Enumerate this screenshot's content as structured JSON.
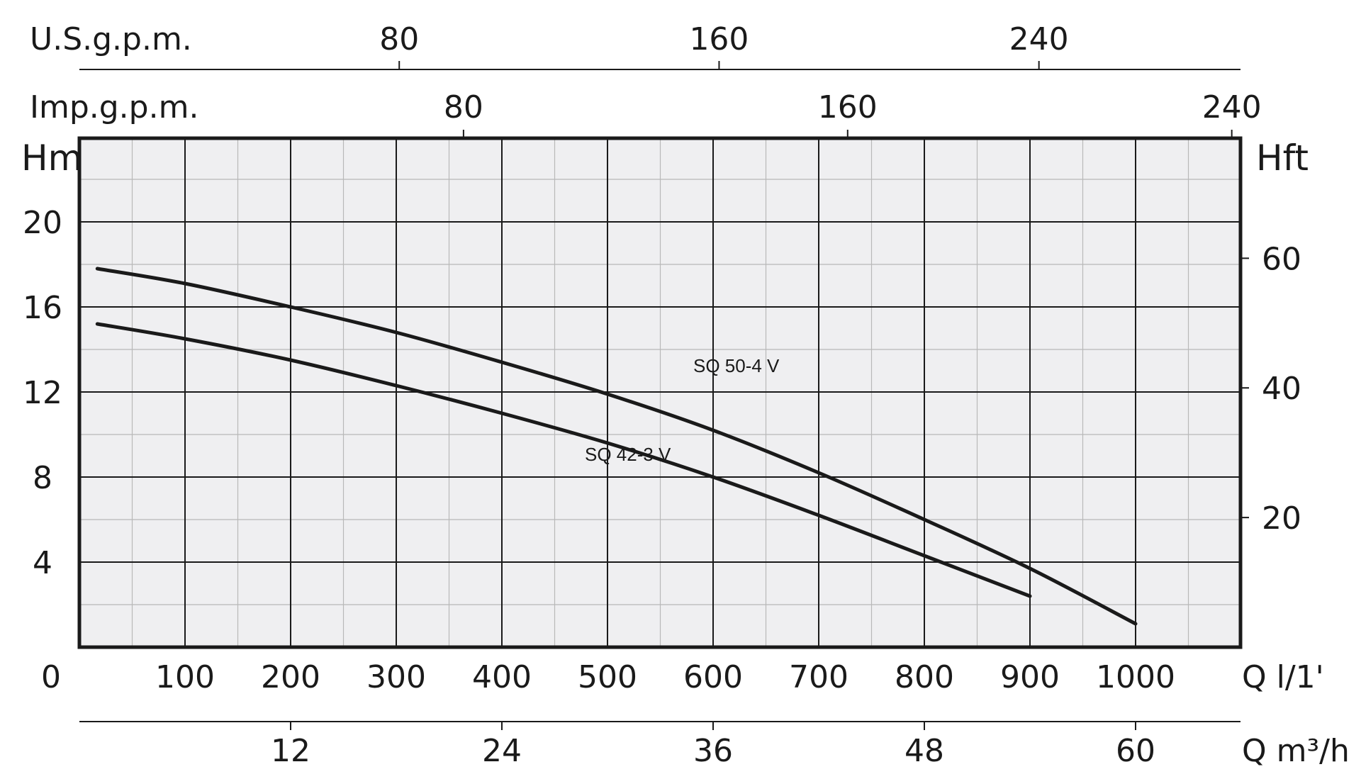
{
  "chart_data": {
    "type": "line",
    "colors": {
      "background": "#efeff1",
      "curve": "#1a1a1a",
      "grid_major": "#1a1a1a",
      "grid_minor": "#b8b8b8"
    },
    "grid": true,
    "axes": {
      "x_bottom": {
        "label": "Q l/1'",
        "range": [
          0,
          1100
        ],
        "ticks": [
          "0",
          "100",
          "200",
          "300",
          "400",
          "500",
          "600",
          "700",
          "800",
          "900",
          "1000"
        ],
        "tick_values": [
          0,
          100,
          200,
          300,
          400,
          500,
          600,
          700,
          800,
          900,
          1000
        ]
      },
      "x_m3h": {
        "label": "Q m³/h",
        "ticks": [
          "12",
          "24",
          "36",
          "48",
          "60"
        ],
        "tick_values": [
          12,
          24,
          36,
          48,
          60
        ]
      },
      "x_usgpm": {
        "label": "U.S.g.p.m.",
        "ticks": [
          "80",
          "160",
          "240"
        ],
        "tick_values": [
          80,
          160,
          240
        ]
      },
      "x_impgpm": {
        "label": "Imp.g.p.m.",
        "ticks": [
          "80",
          "160",
          "240"
        ],
        "tick_values": [
          80,
          160,
          240
        ]
      },
      "y_left": {
        "label": "Hm",
        "range": [
          0,
          24
        ],
        "ticks": [
          "4",
          "8",
          "12",
          "16",
          "20"
        ],
        "tick_values": [
          4,
          8,
          12,
          16,
          20
        ]
      },
      "y_right": {
        "label": "Hft",
        "ticks": [
          "20",
          "40",
          "60"
        ],
        "tick_values": [
          20,
          40,
          60
        ]
      }
    },
    "series": [
      {
        "name": "SQ 50-4 V",
        "x": [
          17,
          100,
          200,
          300,
          400,
          500,
          600,
          700,
          800,
          900,
          1000
        ],
        "y": [
          17.8,
          17.1,
          16.0,
          14.8,
          13.4,
          11.9,
          10.2,
          8.2,
          6.0,
          3.7,
          1.1
        ]
      },
      {
        "name": "SQ 42-3 V",
        "x": [
          17,
          100,
          200,
          300,
          400,
          500,
          600,
          700,
          800,
          900
        ],
        "y": [
          15.2,
          14.5,
          13.5,
          12.3,
          11.0,
          9.6,
          8.0,
          6.2,
          4.3,
          2.4
        ]
      }
    ]
  }
}
